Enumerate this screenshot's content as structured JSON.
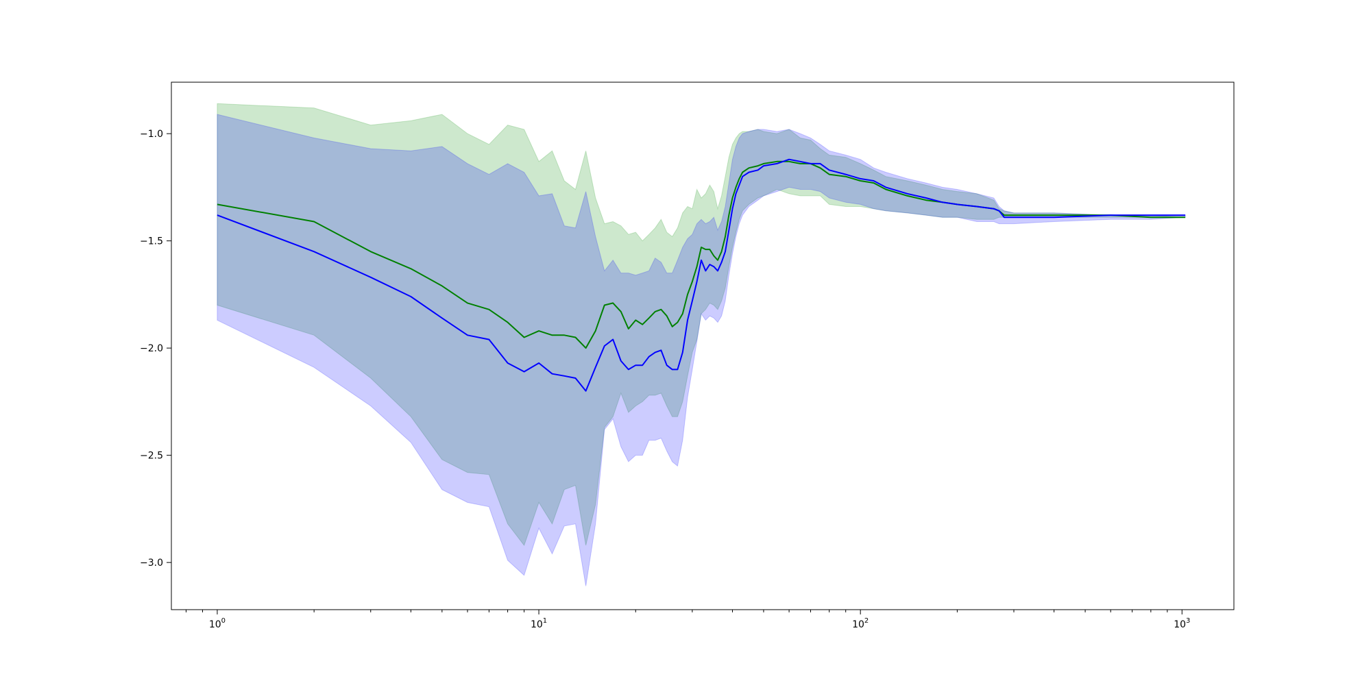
{
  "chart_data": {
    "type": "area",
    "title": "",
    "xlabel": "",
    "ylabel": "",
    "xscale": "log",
    "xlim": [
      0.72,
      1450
    ],
    "ylim": [
      -3.22,
      -0.76
    ],
    "grid": false,
    "legend": "none",
    "x_ticks": [
      {
        "value": 1,
        "base": "10",
        "exp": "0"
      },
      {
        "value": 10,
        "base": "10",
        "exp": "1"
      },
      {
        "value": 100,
        "base": "10",
        "exp": "2"
      },
      {
        "value": 1000,
        "base": "10",
        "exp": "3"
      }
    ],
    "y_ticks": [
      {
        "value": -1.0,
        "label": "−1.0"
      },
      {
        "value": -1.5,
        "label": "−1.5"
      },
      {
        "value": -2.0,
        "label": "−2.0"
      },
      {
        "value": -2.5,
        "label": "−2.5"
      },
      {
        "value": -3.0,
        "label": "−3.0"
      }
    ],
    "series": [
      {
        "color": "#008000",
        "band_color": "#2ca02c",
        "band_opacity": 0.24,
        "x": [
          1,
          2,
          3,
          4,
          5,
          6,
          7,
          8,
          9,
          10,
          11,
          12,
          13,
          14,
          15,
          16,
          17,
          18,
          19,
          20,
          21,
          22,
          23,
          24,
          25,
          26,
          27,
          28,
          29,
          30,
          31,
          32,
          33,
          34,
          35,
          36,
          37,
          38,
          39,
          40,
          41,
          42,
          43,
          45,
          48,
          50,
          55,
          60,
          65,
          70,
          75,
          80,
          90,
          100,
          110,
          120,
          140,
          160,
          180,
          200,
          230,
          260,
          270,
          280,
          300,
          400,
          600,
          800,
          1024
        ],
        "mean": [
          -1.33,
          -1.41,
          -1.55,
          -1.63,
          -1.71,
          -1.79,
          -1.82,
          -1.88,
          -1.95,
          -1.92,
          -1.94,
          -1.94,
          -1.95,
          -2.0,
          -1.92,
          -1.8,
          -1.79,
          -1.83,
          -1.91,
          -1.87,
          -1.89,
          -1.86,
          -1.83,
          -1.82,
          -1.85,
          -1.9,
          -1.88,
          -1.84,
          -1.75,
          -1.69,
          -1.62,
          -1.53,
          -1.54,
          -1.54,
          -1.57,
          -1.59,
          -1.55,
          -1.48,
          -1.38,
          -1.3,
          -1.25,
          -1.21,
          -1.18,
          -1.16,
          -1.15,
          -1.14,
          -1.13,
          -1.13,
          -1.14,
          -1.14,
          -1.16,
          -1.19,
          -1.2,
          -1.22,
          -1.23,
          -1.26,
          -1.29,
          -1.31,
          -1.32,
          -1.33,
          -1.34,
          -1.35,
          -1.36,
          -1.38,
          -1.38,
          -1.38,
          -1.38,
          -1.39,
          -1.39
        ],
        "upper": [
          -0.86,
          -0.88,
          -0.96,
          -0.94,
          -0.91,
          -1.0,
          -1.05,
          -0.96,
          -0.98,
          -1.13,
          -1.08,
          -1.22,
          -1.26,
          -1.08,
          -1.3,
          -1.42,
          -1.41,
          -1.43,
          -1.47,
          -1.46,
          -1.5,
          -1.47,
          -1.44,
          -1.4,
          -1.46,
          -1.48,
          -1.44,
          -1.37,
          -1.34,
          -1.35,
          -1.26,
          -1.3,
          -1.28,
          -1.24,
          -1.27,
          -1.35,
          -1.29,
          -1.2,
          -1.11,
          -1.05,
          -1.02,
          -1.0,
          -0.99,
          -0.99,
          -0.98,
          -0.99,
          -1.0,
          -0.98,
          -1.02,
          -1.03,
          -1.07,
          -1.1,
          -1.11,
          -1.14,
          -1.17,
          -1.2,
          -1.22,
          -1.24,
          -1.26,
          -1.27,
          -1.28,
          -1.31,
          -1.35,
          -1.36,
          -1.37,
          -1.37,
          -1.38,
          -1.38,
          -1.39
        ],
        "lower": [
          -1.8,
          -1.94,
          -2.14,
          -2.32,
          -2.52,
          -2.58,
          -2.59,
          -2.82,
          -2.92,
          -2.72,
          -2.82,
          -2.66,
          -2.64,
          -2.92,
          -2.73,
          -2.37,
          -2.32,
          -2.21,
          -2.3,
          -2.27,
          -2.25,
          -2.22,
          -2.22,
          -2.21,
          -2.27,
          -2.32,
          -2.32,
          -2.25,
          -2.13,
          -2.02,
          -1.96,
          -1.84,
          -1.82,
          -1.79,
          -1.8,
          -1.82,
          -1.78,
          -1.72,
          -1.62,
          -1.53,
          -1.46,
          -1.4,
          -1.36,
          -1.33,
          -1.3,
          -1.29,
          -1.26,
          -1.28,
          -1.29,
          -1.29,
          -1.29,
          -1.33,
          -1.34,
          -1.34,
          -1.35,
          -1.36,
          -1.37,
          -1.38,
          -1.39,
          -1.39,
          -1.4,
          -1.4,
          -1.39,
          -1.39,
          -1.39,
          -1.39,
          -1.39,
          -1.39,
          -1.39
        ]
      },
      {
        "color": "#0000ff",
        "band_color": "#0000ff",
        "band_opacity": 0.2,
        "x": [
          1,
          2,
          3,
          4,
          5,
          6,
          7,
          8,
          9,
          10,
          11,
          12,
          13,
          14,
          15,
          16,
          17,
          18,
          19,
          20,
          21,
          22,
          23,
          24,
          25,
          26,
          27,
          28,
          29,
          30,
          31,
          32,
          33,
          34,
          35,
          36,
          37,
          38,
          39,
          40,
          41,
          42,
          43,
          45,
          48,
          50,
          55,
          60,
          65,
          70,
          75,
          80,
          90,
          100,
          110,
          120,
          140,
          160,
          180,
          200,
          230,
          260,
          270,
          280,
          300,
          400,
          600,
          800,
          1024
        ],
        "mean": [
          -1.38,
          -1.55,
          -1.67,
          -1.76,
          -1.86,
          -1.94,
          -1.96,
          -2.07,
          -2.11,
          -2.07,
          -2.12,
          -2.13,
          -2.14,
          -2.2,
          -2.09,
          -1.99,
          -1.96,
          -2.06,
          -2.1,
          -2.08,
          -2.08,
          -2.04,
          -2.02,
          -2.01,
          -2.08,
          -2.1,
          -2.1,
          -2.02,
          -1.87,
          -1.78,
          -1.69,
          -1.59,
          -1.64,
          -1.61,
          -1.62,
          -1.64,
          -1.6,
          -1.55,
          -1.45,
          -1.35,
          -1.28,
          -1.24,
          -1.2,
          -1.18,
          -1.17,
          -1.15,
          -1.14,
          -1.12,
          -1.13,
          -1.14,
          -1.14,
          -1.17,
          -1.19,
          -1.21,
          -1.22,
          -1.25,
          -1.28,
          -1.3,
          -1.32,
          -1.33,
          -1.34,
          -1.35,
          -1.36,
          -1.39,
          -1.39,
          -1.39,
          -1.38,
          -1.38,
          -1.38
        ],
        "upper": [
          -0.91,
          -1.02,
          -1.07,
          -1.08,
          -1.06,
          -1.14,
          -1.19,
          -1.14,
          -1.18,
          -1.29,
          -1.28,
          -1.43,
          -1.44,
          -1.27,
          -1.48,
          -1.64,
          -1.59,
          -1.65,
          -1.65,
          -1.66,
          -1.65,
          -1.64,
          -1.58,
          -1.6,
          -1.65,
          -1.65,
          -1.59,
          -1.53,
          -1.49,
          -1.47,
          -1.42,
          -1.4,
          -1.42,
          -1.41,
          -1.39,
          -1.45,
          -1.41,
          -1.34,
          -1.23,
          -1.12,
          -1.06,
          -1.02,
          -1.0,
          -0.99,
          -0.98,
          -0.98,
          -0.99,
          -0.98,
          -1.0,
          -1.02,
          -1.05,
          -1.08,
          -1.1,
          -1.12,
          -1.16,
          -1.18,
          -1.21,
          -1.23,
          -1.25,
          -1.26,
          -1.28,
          -1.3,
          -1.34,
          -1.36,
          -1.37,
          -1.37,
          -1.38,
          -1.38,
          -1.38
        ],
        "lower": [
          -1.87,
          -2.09,
          -2.27,
          -2.44,
          -2.66,
          -2.72,
          -2.74,
          -2.99,
          -3.06,
          -2.84,
          -2.96,
          -2.83,
          -2.82,
          -3.11,
          -2.82,
          -2.38,
          -2.33,
          -2.46,
          -2.53,
          -2.5,
          -2.5,
          -2.43,
          -2.43,
          -2.42,
          -2.48,
          -2.53,
          -2.55,
          -2.43,
          -2.23,
          -2.1,
          -1.97,
          -1.84,
          -1.87,
          -1.85,
          -1.86,
          -1.88,
          -1.85,
          -1.78,
          -1.66,
          -1.56,
          -1.48,
          -1.42,
          -1.38,
          -1.34,
          -1.31,
          -1.29,
          -1.27,
          -1.25,
          -1.26,
          -1.26,
          -1.27,
          -1.3,
          -1.32,
          -1.33,
          -1.35,
          -1.36,
          -1.37,
          -1.38,
          -1.39,
          -1.39,
          -1.41,
          -1.41,
          -1.42,
          -1.42,
          -1.42,
          -1.41,
          -1.4,
          -1.4,
          -1.39
        ]
      }
    ]
  }
}
